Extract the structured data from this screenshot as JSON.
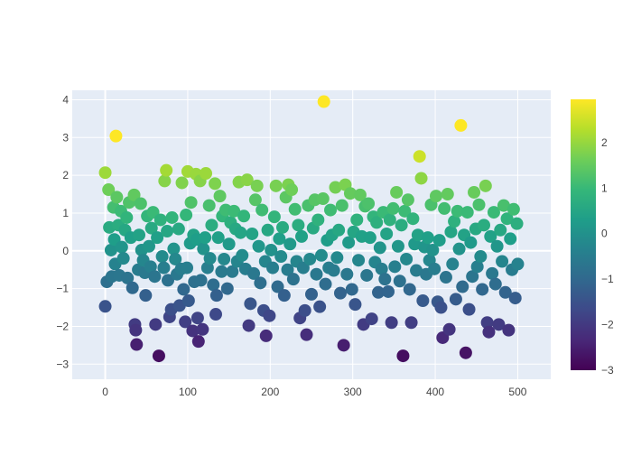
{
  "chart_data": {
    "type": "scatter",
    "title": "",
    "xlabel": "",
    "ylabel": "",
    "xlim": [
      -40,
      540
    ],
    "ylim": [
      -3.4,
      4.25
    ],
    "x_ticks": [
      0,
      100,
      200,
      300,
      400,
      500
    ],
    "y_ticks": [
      -3,
      -2,
      -1,
      0,
      1,
      2,
      3,
      4
    ],
    "grid": true,
    "colorscale": "Viridis",
    "colorbar": {
      "range": [
        -3,
        2.95
      ],
      "ticks": [
        2,
        1,
        0,
        -1,
        -2,
        -3
      ]
    },
    "colors": {
      "plot_background": "#e5ecf6",
      "grid": "#ffffff",
      "colorscale_stops": [
        "#440154",
        "#482878",
        "#3e4989",
        "#31688e",
        "#26828e",
        "#1f9e89",
        "#35b779",
        "#6ece58",
        "#b5de2b",
        "#fde725"
      ]
    },
    "marker_size_px": 14,
    "marker_opacity": 1,
    "points": [
      {
        "x": 0,
        "y": 2.07
      },
      {
        "x": 0,
        "y": -1.47
      },
      {
        "x": 2,
        "y": -0.82
      },
      {
        "x": 4,
        "y": 1.62
      },
      {
        "x": 5,
        "y": 0.62
      },
      {
        "x": 7,
        "y": 0.02
      },
      {
        "x": 8,
        "y": -0.68
      },
      {
        "x": 10,
        "y": 1.15
      },
      {
        "x": 11,
        "y": 0.3
      },
      {
        "x": 12,
        "y": -0.35
      },
      {
        "x": 14,
        "y": 1.42
      },
      {
        "x": 13,
        "y": 3.04
      },
      {
        "x": 16,
        "y": 0.68
      },
      {
        "x": 17,
        "y": -0.65
      },
      {
        "x": 19,
        "y": 1.05
      },
      {
        "x": 20,
        "y": 0.1
      },
      {
        "x": 22,
        "y": -0.2
      },
      {
        "x": 24,
        "y": 0.55
      },
      {
        "x": 26,
        "y": 0.88
      },
      {
        "x": 27,
        "y": -0.72
      },
      {
        "x": 29,
        "y": 1.28
      },
      {
        "x": 31,
        "y": 0.35
      },
      {
        "x": 33,
        "y": -0.98
      },
      {
        "x": 35,
        "y": 1.48
      },
      {
        "x": 36,
        "y": -1.95
      },
      {
        "x": 37,
        "y": -2.1
      },
      {
        "x": 38,
        "y": -2.48
      },
      {
        "x": 40,
        "y": -0.5
      },
      {
        "x": 41,
        "y": 0.42
      },
      {
        "x": 43,
        "y": 1.25
      },
      {
        "x": 44,
        "y": 0.02
      },
      {
        "x": 46,
        "y": -0.25
      },
      {
        "x": 48,
        "y": -0.58
      },
      {
        "x": 49,
        "y": -1.18
      },
      {
        "x": 51,
        "y": 0.92
      },
      {
        "x": 53,
        "y": 0.12
      },
      {
        "x": 55,
        "y": -0.42
      },
      {
        "x": 56,
        "y": 0.6
      },
      {
        "x": 58,
        "y": 1.02
      },
      {
        "x": 60,
        "y": -0.68
      },
      {
        "x": 61,
        "y": -1.95
      },
      {
        "x": 63,
        "y": 0.35
      },
      {
        "x": 65,
        "y": -2.78
      },
      {
        "x": 67,
        "y": 0.82
      },
      {
        "x": 69,
        "y": -0.15
      },
      {
        "x": 71,
        "y": -0.45
      },
      {
        "x": 72,
        "y": 1.85
      },
      {
        "x": 74,
        "y": 2.13
      },
      {
        "x": 75,
        "y": 0.52
      },
      {
        "x": 76,
        "y": -0.78
      },
      {
        "x": 78,
        "y": -1.75
      },
      {
        "x": 80,
        "y": -1.55
      },
      {
        "x": 81,
        "y": 0.88
      },
      {
        "x": 83,
        "y": 0.05
      },
      {
        "x": 85,
        "y": -0.22
      },
      {
        "x": 87,
        "y": -0.62
      },
      {
        "x": 89,
        "y": 0.58
      },
      {
        "x": 90,
        "y": -1.45
      },
      {
        "x": 92,
        "y": -0.48
      },
      {
        "x": 93,
        "y": 1.8
      },
      {
        "x": 95,
        "y": -1.02
      },
      {
        "x": 97,
        "y": -1.88
      },
      {
        "x": 98,
        "y": 0.95
      },
      {
        "x": 99,
        "y": -0.45
      },
      {
        "x": 100,
        "y": 2.1
      },
      {
        "x": 101,
        "y": -1.32
      },
      {
        "x": 103,
        "y": 0.2
      },
      {
        "x": 104,
        "y": 1.28
      },
      {
        "x": 106,
        "y": -2.12
      },
      {
        "x": 107,
        "y": 0.42
      },
      {
        "x": 108,
        "y": -0.82
      },
      {
        "x": 110,
        "y": 2.03
      },
      {
        "x": 111,
        "y": 0.3
      },
      {
        "x": 112,
        "y": -1.78
      },
      {
        "x": 113,
        "y": -2.4
      },
      {
        "x": 115,
        "y": 1.85
      },
      {
        "x": 116,
        "y": -0.78
      },
      {
        "x": 118,
        "y": -2.08
      },
      {
        "x": 119,
        "y": 0.05
      },
      {
        "x": 121,
        "y": 0.35
      },
      {
        "x": 122,
        "y": 2.05
      },
      {
        "x": 124,
        "y": -0.45
      },
      {
        "x": 126,
        "y": 1.2
      },
      {
        "x": 127,
        "y": -0.2
      },
      {
        "x": 129,
        "y": 0.68
      },
      {
        "x": 131,
        "y": -0.9
      },
      {
        "x": 133,
        "y": 1.78
      },
      {
        "x": 134,
        "y": -1.68
      },
      {
        "x": 135,
        "y": -1.18
      },
      {
        "x": 137,
        "y": 0.35
      },
      {
        "x": 139,
        "y": 1.45
      },
      {
        "x": 141,
        "y": -0.55
      },
      {
        "x": 142,
        "y": 0.92
      },
      {
        "x": 144,
        "y": -0.22
      },
      {
        "x": 146,
        "y": 1.08
      },
      {
        "x": 148,
        "y": -1.0
      },
      {
        "x": 150,
        "y": 0.18
      },
      {
        "x": 152,
        "y": 0.75
      },
      {
        "x": 154,
        "y": -0.55
      },
      {
        "x": 156,
        "y": 1.05
      },
      {
        "x": 158,
        "y": 0.58
      },
      {
        "x": 160,
        "y": -0.28
      },
      {
        "x": 162,
        "y": 1.82
      },
      {
        "x": 164,
        "y": 0.48
      },
      {
        "x": 166,
        "y": -0.12
      },
      {
        "x": 168,
        "y": 0.92
      },
      {
        "x": 170,
        "y": -0.48
      },
      {
        "x": 172,
        "y": 1.88
      },
      {
        "x": 174,
        "y": -1.98
      },
      {
        "x": 176,
        "y": -1.4
      },
      {
        "x": 178,
        "y": 0.45
      },
      {
        "x": 180,
        "y": -0.6
      },
      {
        "x": 182,
        "y": 1.35
      },
      {
        "x": 184,
        "y": 1.72
      },
      {
        "x": 186,
        "y": 0.12
      },
      {
        "x": 188,
        "y": -0.85
      },
      {
        "x": 190,
        "y": 1.08
      },
      {
        "x": 192,
        "y": -1.58
      },
      {
        "x": 194,
        "y": -0.28
      },
      {
        "x": 195,
        "y": -2.25
      },
      {
        "x": 197,
        "y": 0.55
      },
      {
        "x": 199,
        "y": -1.72
      },
      {
        "x": 201,
        "y": 0.02
      },
      {
        "x": 203,
        "y": -0.45
      },
      {
        "x": 205,
        "y": 0.9
      },
      {
        "x": 207,
        "y": 1.72
      },
      {
        "x": 209,
        "y": -0.95
      },
      {
        "x": 211,
        "y": 0.32
      },
      {
        "x": 213,
        "y": -0.15
      },
      {
        "x": 215,
        "y": 0.62
      },
      {
        "x": 217,
        "y": -1.18
      },
      {
        "x": 219,
        "y": 1.42
      },
      {
        "x": 221,
        "y": -0.5
      },
      {
        "x": 222,
        "y": 1.75
      },
      {
        "x": 224,
        "y": 0.18
      },
      {
        "x": 226,
        "y": 1.62
      },
      {
        "x": 228,
        "y": -0.75
      },
      {
        "x": 230,
        "y": 1.1
      },
      {
        "x": 232,
        "y": -0.28
      },
      {
        "x": 234,
        "y": 0.68
      },
      {
        "x": 236,
        "y": -1.78
      },
      {
        "x": 238,
        "y": 0.38
      },
      {
        "x": 240,
        "y": -0.45
      },
      {
        "x": 242,
        "y": -1.58
      },
      {
        "x": 244,
        "y": -2.22
      },
      {
        "x": 246,
        "y": 1.2
      },
      {
        "x": 248,
        "y": -0.22
      },
      {
        "x": 250,
        "y": -1.15
      },
      {
        "x": 252,
        "y": 0.6
      },
      {
        "x": 254,
        "y": 1.35
      },
      {
        "x": 256,
        "y": -0.62
      },
      {
        "x": 258,
        "y": 0.82
      },
      {
        "x": 260,
        "y": -1.48
      },
      {
        "x": 262,
        "y": -0.12
      },
      {
        "x": 264,
        "y": 1.38
      },
      {
        "x": 265,
        "y": 3.95
      },
      {
        "x": 267,
        "y": -0.88
      },
      {
        "x": 269,
        "y": 0.28
      },
      {
        "x": 271,
        "y": -0.45
      },
      {
        "x": 273,
        "y": 1.08
      },
      {
        "x": 275,
        "y": 0.42
      },
      {
        "x": 277,
        "y": -0.52
      },
      {
        "x": 279,
        "y": 1.68
      },
      {
        "x": 281,
        "y": -0.18
      },
      {
        "x": 283,
        "y": 0.55
      },
      {
        "x": 285,
        "y": -1.12
      },
      {
        "x": 287,
        "y": 1.2
      },
      {
        "x": 289,
        "y": -2.5
      },
      {
        "x": 291,
        "y": 1.75
      },
      {
        "x": 293,
        "y": -0.62
      },
      {
        "x": 295,
        "y": 0.22
      },
      {
        "x": 297,
        "y": 1.52
      },
      {
        "x": 299,
        "y": -1.02
      },
      {
        "x": 301,
        "y": 0.5
      },
      {
        "x": 303,
        "y": -1.42
      },
      {
        "x": 305,
        "y": 0.82
      },
      {
        "x": 307,
        "y": -0.25
      },
      {
        "x": 309,
        "y": 1.48
      },
      {
        "x": 311,
        "y": 0.38
      },
      {
        "x": 313,
        "y": -1.95
      },
      {
        "x": 315,
        "y": 1.18
      },
      {
        "x": 317,
        "y": -0.65
      },
      {
        "x": 319,
        "y": 1.25
      },
      {
        "x": 321,
        "y": 0.35
      },
      {
        "x": 323,
        "y": -1.8
      },
      {
        "x": 325,
        "y": 0.9
      },
      {
        "x": 327,
        "y": -0.3
      },
      {
        "x": 329,
        "y": 0.75
      },
      {
        "x": 331,
        "y": -1.1
      },
      {
        "x": 333,
        "y": 0.08
      },
      {
        "x": 335,
        "y": -0.48
      },
      {
        "x": 337,
        "y": 1.02
      },
      {
        "x": 339,
        "y": -0.75
      },
      {
        "x": 341,
        "y": 0.45
      },
      {
        "x": 343,
        "y": -1.08
      },
      {
        "x": 345,
        "y": 0.82
      },
      {
        "x": 347,
        "y": -1.9
      },
      {
        "x": 349,
        "y": 1.12
      },
      {
        "x": 351,
        "y": -0.42
      },
      {
        "x": 353,
        "y": 1.55
      },
      {
        "x": 355,
        "y": 0.12
      },
      {
        "x": 357,
        "y": -0.8
      },
      {
        "x": 359,
        "y": 0.68
      },
      {
        "x": 361,
        "y": -2.78
      },
      {
        "x": 363,
        "y": 1.05
      },
      {
        "x": 365,
        "y": -0.22
      },
      {
        "x": 367,
        "y": 1.35
      },
      {
        "x": 369,
        "y": -1.02
      },
      {
        "x": 371,
        "y": -1.9
      },
      {
        "x": 373,
        "y": 0.85
      },
      {
        "x": 375,
        "y": 0.18
      },
      {
        "x": 377,
        "y": -0.52
      },
      {
        "x": 379,
        "y": 0.42
      },
      {
        "x": 381,
        "y": 2.5
      },
      {
        "x": 383,
        "y": 1.92
      },
      {
        "x": 385,
        "y": -1.32
      },
      {
        "x": 387,
        "y": 0.1
      },
      {
        "x": 389,
        "y": -0.62
      },
      {
        "x": 391,
        "y": 0.35
      },
      {
        "x": 393,
        "y": -0.25
      },
      {
        "x": 395,
        "y": 1.22
      },
      {
        "x": 397,
        "y": 0.02
      },
      {
        "x": 399,
        "y": -0.48
      },
      {
        "x": 401,
        "y": 1.45
      },
      {
        "x": 403,
        "y": -1.35
      },
      {
        "x": 405,
        "y": 0.28
      },
      {
        "x": 407,
        "y": -1.5
      },
      {
        "x": 409,
        "y": -2.3
      },
      {
        "x": 411,
        "y": 1.12
      },
      {
        "x": 413,
        "y": -0.7
      },
      {
        "x": 415,
        "y": 1.5
      },
      {
        "x": 417,
        "y": -2.08
      },
      {
        "x": 419,
        "y": 0.5
      },
      {
        "x": 421,
        "y": -0.35
      },
      {
        "x": 423,
        "y": 0.78
      },
      {
        "x": 425,
        "y": -1.28
      },
      {
        "x": 427,
        "y": 1.05
      },
      {
        "x": 429,
        "y": 0.05
      },
      {
        "x": 431,
        "y": 3.32
      },
      {
        "x": 433,
        "y": -0.95
      },
      {
        "x": 435,
        "y": 0.42
      },
      {
        "x": 437,
        "y": -2.7
      },
      {
        "x": 439,
        "y": 1.02
      },
      {
        "x": 441,
        "y": -1.55
      },
      {
        "x": 443,
        "y": 0.22
      },
      {
        "x": 445,
        "y": -0.68
      },
      {
        "x": 447,
        "y": 1.55
      },
      {
        "x": 449,
        "y": 0.58
      },
      {
        "x": 451,
        "y": -0.42
      },
      {
        "x": 453,
        "y": 1.22
      },
      {
        "x": 455,
        "y": -0.15
      },
      {
        "x": 457,
        "y": -1.02
      },
      {
        "x": 459,
        "y": 0.68
      },
      {
        "x": 461,
        "y": 1.72
      },
      {
        "x": 463,
        "y": -1.9
      },
      {
        "x": 465,
        "y": -2.15
      },
      {
        "x": 467,
        "y": 0.38
      },
      {
        "x": 469,
        "y": -0.6
      },
      {
        "x": 471,
        "y": 1.02
      },
      {
        "x": 473,
        "y": -0.88
      },
      {
        "x": 475,
        "y": 0.12
      },
      {
        "x": 477,
        "y": -1.95
      },
      {
        "x": 479,
        "y": 0.55
      },
      {
        "x": 481,
        "y": -0.28
      },
      {
        "x": 483,
        "y": 1.2
      },
      {
        "x": 485,
        "y": -1.1
      },
      {
        "x": 487,
        "y": 0.85
      },
      {
        "x": 489,
        "y": -2.1
      },
      {
        "x": 491,
        "y": 0.32
      },
      {
        "x": 493,
        "y": -0.5
      },
      {
        "x": 495,
        "y": 1.1
      },
      {
        "x": 497,
        "y": -1.25
      },
      {
        "x": 499,
        "y": 0.72
      },
      {
        "x": 500,
        "y": -0.35
      }
    ]
  }
}
